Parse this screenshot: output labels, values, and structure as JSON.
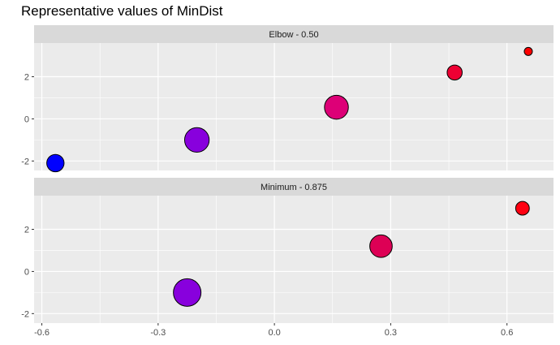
{
  "chart_data": {
    "type": "scatter",
    "title": "Representative values of MinDist",
    "xlabel": "",
    "ylabel": "",
    "xlim": [
      -0.62,
      0.72
    ],
    "ylim": [
      -2.45,
      3.6
    ],
    "x_ticks": [
      -0.6,
      -0.3,
      0.0,
      0.3,
      0.6
    ],
    "x_tick_labels": [
      "-0.6",
      "-0.3",
      "0.0",
      "0.3",
      "0.6"
    ],
    "y_ticks": [
      -2,
      0,
      2
    ],
    "y_tick_labels": [
      "-2",
      "0",
      "2"
    ],
    "grid": true,
    "legend": "none",
    "colors": {
      "panel_bg": "#ebebeb",
      "strip_bg": "#d9d9d9",
      "grid": "#ffffff"
    },
    "panels": [
      {
        "strip": "Elbow - 0.50",
        "points": [
          {
            "x": -0.565,
            "y": -2.1,
            "size": 0.3,
            "color": "#0000ff"
          },
          {
            "x": -0.2,
            "y": -1.0,
            "size": 0.75,
            "color": "#8800dd"
          },
          {
            "x": 0.16,
            "y": 0.55,
            "size": 0.7,
            "color": "#dd0077"
          },
          {
            "x": 0.465,
            "y": 2.2,
            "size": 0.2,
            "color": "#ee0033"
          },
          {
            "x": 0.655,
            "y": 3.2,
            "size": 0.02,
            "color": "#ff0000"
          }
        ]
      },
      {
        "strip": "Minimum - 0.875",
        "points": [
          {
            "x": -0.225,
            "y": -1.0,
            "size": 1.0,
            "color": "#8800dd"
          },
          {
            "x": 0.275,
            "y": 1.2,
            "size": 0.6,
            "color": "#dd0055"
          },
          {
            "x": 0.64,
            "y": 3.0,
            "size": 0.15,
            "color": "#ff0011"
          }
        ]
      }
    ]
  }
}
